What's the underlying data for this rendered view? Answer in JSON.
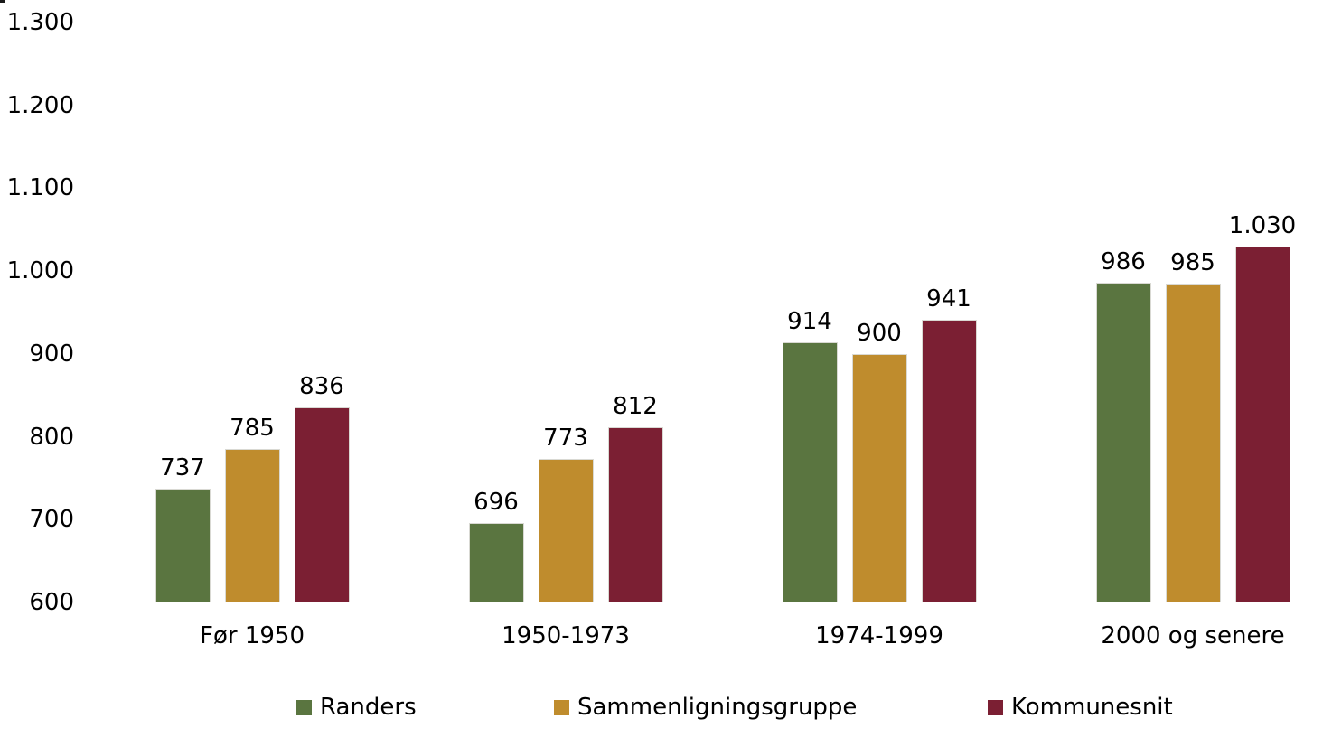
{
  "chart_data": {
    "type": "bar",
    "title": "",
    "xlabel": "",
    "ylabel": "",
    "categories": [
      "Før 1950",
      "1950-1973",
      "1974-1999",
      "2000 og senere"
    ],
    "series": [
      {
        "name": "Randers",
        "color": "#5A7540",
        "values": [
          737,
          696,
          914,
          986
        ],
        "value_labels": [
          "737",
          "696",
          "914",
          "986"
        ]
      },
      {
        "name": "Sammenligningsgruppe",
        "color": "#BF8C2D",
        "values": [
          785,
          773,
          900,
          985
        ],
        "value_labels": [
          "785",
          "773",
          "900",
          "985"
        ]
      },
      {
        "name": "Kommunesnit",
        "color": "#7B1F33",
        "values": [
          836,
          812,
          941,
          1030
        ],
        "value_labels": [
          "836",
          "812",
          "941",
          "1.030"
        ]
      }
    ],
    "y_axis": {
      "min": 600,
      "max": 1300,
      "ticks": [
        600,
        700,
        800,
        900,
        1000,
        1100,
        1200,
        1300
      ],
      "tick_labels": [
        "600",
        "700",
        "800",
        "900",
        "1.000",
        "1.100",
        "1.200",
        "1.300"
      ],
      "grid": false
    },
    "legend": {
      "position": "bottom",
      "entries": [
        "Randers",
        "Sammenligningsgruppe",
        "Kommunesnit"
      ]
    }
  }
}
